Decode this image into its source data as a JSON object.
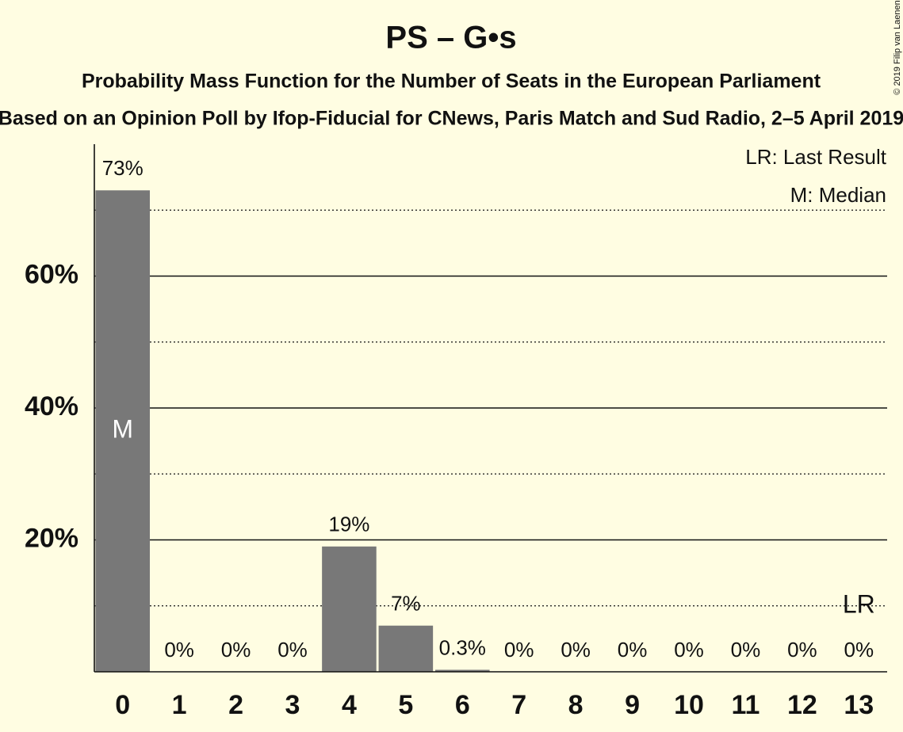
{
  "chart_data": {
    "type": "bar",
    "title": "PS – G•s",
    "subtitle": "Probability Mass Function for the Number of Seats in the European Parliament",
    "subtitle2": "Based on an Opinion Poll by Ifop-Fiducial for CNews, Paris Match and Sud Radio, 2–5 April 2019",
    "copyright": "© 2019 Filip van Laenen",
    "x": [
      0,
      1,
      2,
      3,
      4,
      5,
      6,
      7,
      8,
      9,
      10,
      11,
      12,
      13
    ],
    "values": [
      73,
      0,
      0,
      0,
      19,
      7,
      0.3,
      0,
      0,
      0,
      0,
      0,
      0,
      0
    ],
    "value_labels": [
      "73%",
      "0%",
      "0%",
      "0%",
      "19%",
      "7%",
      "0.3%",
      "0%",
      "0%",
      "0%",
      "0%",
      "0%",
      "0%",
      "0%"
    ],
    "color": "#787878",
    "xlim": [
      -0.5,
      13.5
    ],
    "ylim": [
      0,
      80
    ],
    "yticks": [
      {
        "value": 20,
        "label": "20%"
      },
      {
        "value": 40,
        "label": "40%"
      },
      {
        "value": 60,
        "label": "60%"
      }
    ],
    "minor_yticks": [
      10,
      30,
      50,
      70
    ],
    "grid": true,
    "median": 0,
    "median_label": "M",
    "last_result": 13,
    "last_result_label": "LR",
    "legend": [
      "LR: Last Result",
      "M: Median"
    ]
  }
}
